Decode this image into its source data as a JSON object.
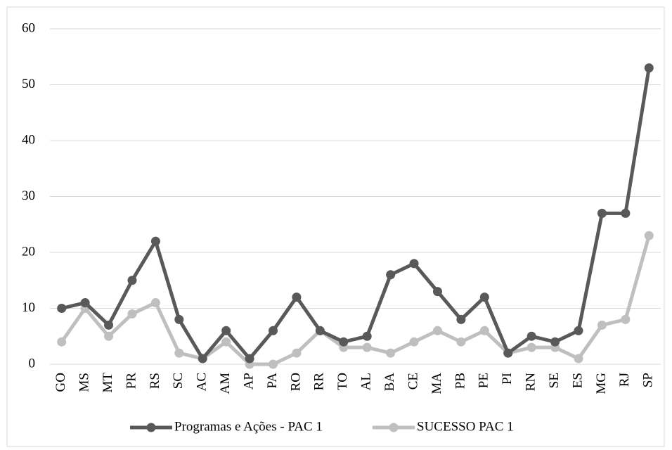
{
  "chart_data": {
    "type": "line",
    "categories": [
      "GO",
      "MS",
      "MT",
      "PR",
      "RS",
      "SC",
      "AC",
      "AM",
      "AP",
      "PA",
      "RO",
      "RR",
      "TO",
      "AL",
      "BA",
      "CE",
      "MA",
      "PB",
      "PE",
      "PI",
      "RN",
      "SE",
      "ES",
      "MG",
      "RJ",
      "SP"
    ],
    "series": [
      {
        "name": "Programas e Ações - PAC 1",
        "color": "#595959",
        "values": [
          10,
          11,
          7,
          15,
          22,
          8,
          1,
          6,
          1,
          6,
          12,
          6,
          4,
          5,
          16,
          18,
          13,
          8,
          12,
          2,
          5,
          4,
          6,
          27,
          27,
          53
        ]
      },
      {
        "name": "SUCESSO PAC 1",
        "color": "#bfbfbf",
        "values": [
          4,
          10,
          5,
          9,
          11,
          2,
          1,
          4,
          0,
          0,
          2,
          6,
          3,
          3,
          2,
          4,
          6,
          4,
          6,
          2,
          3,
          3,
          1,
          7,
          8,
          23
        ]
      }
    ],
    "ylim": [
      0,
      60
    ],
    "yticks": [
      0,
      10,
      20,
      30,
      40,
      50,
      60
    ],
    "grid": true,
    "legend": "bottom"
  }
}
